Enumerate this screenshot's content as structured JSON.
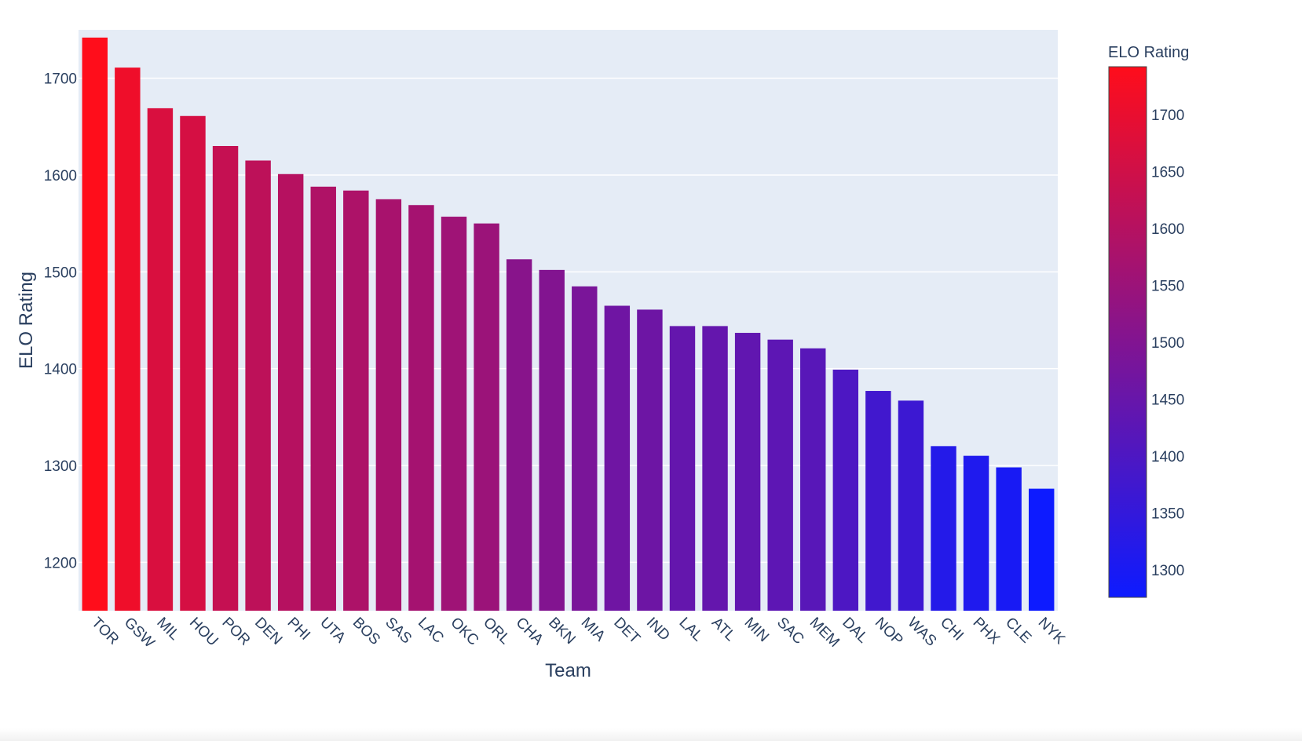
{
  "chart_data": {
    "type": "bar",
    "xlabel": "Team",
    "ylabel": "ELO Rating",
    "categories": [
      "TOR",
      "GSW",
      "MIL",
      "HOU",
      "POR",
      "DEN",
      "PHI",
      "UTA",
      "BOS",
      "SAS",
      "LAC",
      "OKC",
      "ORL",
      "CHA",
      "BKN",
      "MIA",
      "DET",
      "IND",
      "LAL",
      "ATL",
      "MIN",
      "SAC",
      "MEM",
      "DAL",
      "NOP",
      "WAS",
      "CHI",
      "PHX",
      "CLE",
      "NYK"
    ],
    "values": [
      1742,
      1711,
      1669,
      1661,
      1630,
      1615,
      1601,
      1588,
      1584,
      1575,
      1569,
      1557,
      1550,
      1513,
      1502,
      1485,
      1465,
      1461,
      1444,
      1444,
      1437,
      1430,
      1421,
      1399,
      1377,
      1367,
      1320,
      1310,
      1298,
      1276
    ],
    "ylim": [
      1150,
      1750
    ],
    "yticks": [
      1200,
      1300,
      1400,
      1500,
      1600,
      1700
    ],
    "grid": true,
    "colorbar": {
      "title": "ELO Rating",
      "min": 1276,
      "max": 1742,
      "ticks": [
        1300,
        1350,
        1400,
        1450,
        1500,
        1550,
        1600,
        1650,
        1700
      ],
      "color_low": "#0d1bff",
      "color_high": "#ff0d1b"
    },
    "plot_background": "#e5ecf6",
    "text_color": "#2a3f5f"
  }
}
